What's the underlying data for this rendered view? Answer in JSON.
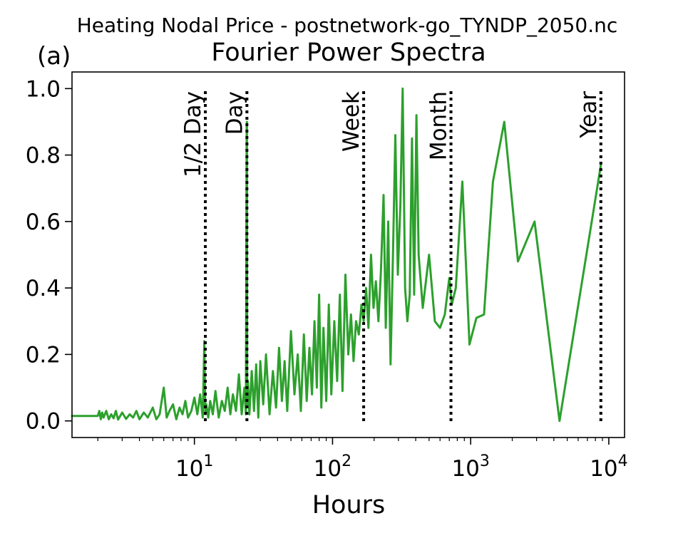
{
  "figure": {
    "suptitle": "Heating Nodal Price - postnetwork-go_TYNDP_2050.nc",
    "panel_label": "(a)"
  },
  "chart_data": {
    "type": "line",
    "title": "Fourier Power Spectra",
    "xlabel": "Hours",
    "ylabel": "",
    "x_scale": "log",
    "xlim": [
      1.3,
      13000
    ],
    "ylim": [
      -0.05,
      1.05
    ],
    "grid": false,
    "legend": "none",
    "x_ticks": [
      {
        "value": 10,
        "label": "10",
        "exp": "1"
      },
      {
        "value": 100,
        "label": "10",
        "exp": "2"
      },
      {
        "value": 1000,
        "label": "10",
        "exp": "3"
      },
      {
        "value": 10000,
        "label": "10",
        "exp": "4"
      }
    ],
    "y_ticks": [
      0.0,
      0.2,
      0.4,
      0.6,
      0.8,
      1.0
    ],
    "y_tick_labels": [
      "0.0",
      "0.2",
      "0.4",
      "0.6",
      "0.8",
      "1.0"
    ],
    "series": [
      {
        "color": "#2ca02c",
        "x": [
          1.3,
          2.0,
          2.05,
          2.1,
          2.15,
          2.2,
          2.3,
          2.4,
          2.5,
          2.6,
          2.7,
          2.8,
          3.0,
          3.2,
          3.4,
          3.6,
          3.8,
          4.0,
          4.3,
          4.6,
          5.0,
          5.3,
          5.6,
          6.0,
          6.3,
          6.6,
          7.0,
          7.4,
          7.8,
          8.2,
          8.6,
          9.0,
          9.5,
          10.0,
          10.5,
          11.0,
          11.5,
          11.8,
          12.0,
          12.2,
          12.6,
          13.0,
          13.6,
          14.2,
          15.0,
          15.8,
          16.6,
          17.4,
          18.2,
          19.0,
          20.0,
          21.0,
          22.0,
          23.0,
          23.6,
          23.9,
          24.0,
          24.1,
          24.4,
          25.0,
          26.0,
          27.0,
          28.0,
          29.0,
          30.0,
          31.5,
          33.0,
          35.0,
          37.0,
          39.0,
          41.0,
          43.0,
          45.0,
          47.0,
          50.0,
          53.0,
          56.0,
          59.0,
          62.0,
          65.0,
          68.0,
          71.0,
          74.0,
          77.0,
          80.0,
          83.0,
          86.0,
          90.0,
          94.0,
          98.0,
          103.0,
          108.0,
          113.0,
          118.0,
          124.0,
          130.0,
          136.0,
          142.0,
          148.0,
          155.0,
          162.0,
          168.0,
          175.0,
          182.0,
          190.0,
          198.0,
          206.0,
          215.0,
          224.0,
          234.0,
          243.0,
          253.0,
          263.0,
          274.0,
          285.0,
          297.0,
          310.0,
          322.0,
          335.0,
          348.0,
          362.0,
          376.0,
          390.0,
          405.0,
          420.0,
          450.0,
          500.0,
          550.0,
          600.0,
          650.0,
          700.0,
          730.0,
          780.0,
          870.0,
          980.0,
          1100.0,
          1250.0,
          1450.0,
          1750.0,
          2200.0,
          2900.0,
          4400.0,
          8760.0
        ],
        "values": [
          0.015,
          0.015,
          0.03,
          0.005,
          0.025,
          0.01,
          0.03,
          0.005,
          0.02,
          0.008,
          0.03,
          0.004,
          0.025,
          0.006,
          0.02,
          0.01,
          0.03,
          0.005,
          0.025,
          0.01,
          0.04,
          0.005,
          0.02,
          0.1,
          0.01,
          0.03,
          0.05,
          0.005,
          0.04,
          0.02,
          0.06,
          0.01,
          0.03,
          0.07,
          0.02,
          0.08,
          0.01,
          0.24,
          0.02,
          0.05,
          0.01,
          0.06,
          0.02,
          0.09,
          0.01,
          0.06,
          0.03,
          0.1,
          0.02,
          0.08,
          0.03,
          0.14,
          0.02,
          0.1,
          0.02,
          0.88,
          0.9,
          0.05,
          0.12,
          0.02,
          0.15,
          0.03,
          0.17,
          0.01,
          0.18,
          0.05,
          0.2,
          0.02,
          0.15,
          0.04,
          0.22,
          0.06,
          0.18,
          0.03,
          0.27,
          0.08,
          0.2,
          0.03,
          0.26,
          0.06,
          0.22,
          0.08,
          0.3,
          0.1,
          0.38,
          0.04,
          0.28,
          0.06,
          0.35,
          0.08,
          0.3,
          0.12,
          0.38,
          0.09,
          0.44,
          0.2,
          0.32,
          0.18,
          0.3,
          0.26,
          0.35,
          0.3,
          0.4,
          0.28,
          0.5,
          0.34,
          0.42,
          0.3,
          0.45,
          0.68,
          0.28,
          0.6,
          0.17,
          0.5,
          0.86,
          0.44,
          0.65,
          1.0,
          0.4,
          0.3,
          0.38,
          0.85,
          0.38,
          0.92,
          0.5,
          0.34,
          0.5,
          0.3,
          0.28,
          0.32,
          0.43,
          0.35,
          0.4,
          0.72,
          0.23,
          0.31,
          0.32,
          0.72,
          0.9,
          0.48,
          0.6,
          0.0,
          0.77
        ]
      }
    ],
    "annotations": [
      {
        "label": "1/2 Day",
        "x": 12
      },
      {
        "label": "Day",
        "x": 24
      },
      {
        "label": "Week",
        "x": 168
      },
      {
        "label": "Month",
        "x": 720
      },
      {
        "label": "Year",
        "x": 8760
      }
    ]
  }
}
